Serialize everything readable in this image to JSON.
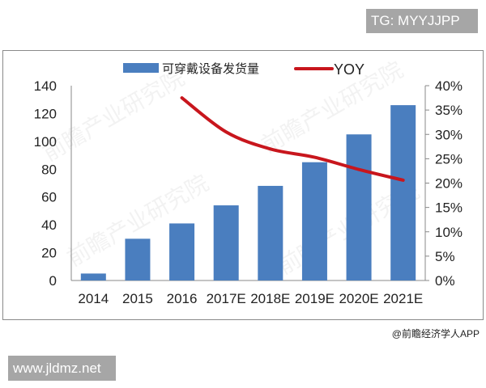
{
  "watermarks": {
    "tg": "TG: MYYJJPP",
    "site": "www.jldmz.net",
    "credit": "@前瞻经济学人APP",
    "logo_text": "前瞻产业研究院"
  },
  "chart_data": {
    "type": "bar+line",
    "categories": [
      "2014",
      "2015",
      "2016",
      "2017E",
      "2018E",
      "2019E",
      "2020E",
      "2021E"
    ],
    "series": [
      {
        "name": "可穿戴设备发货量",
        "type": "bar",
        "axis": "left",
        "color": "#4a7ebf",
        "values": [
          5,
          30,
          41,
          54,
          68,
          85,
          105,
          126
        ]
      },
      {
        "name": "YOY",
        "type": "line",
        "axis": "right",
        "color": "#c8161d",
        "values": [
          null,
          null,
          37.5,
          30.5,
          27,
          25.3,
          22.8,
          20.6
        ]
      }
    ],
    "y_left": {
      "range": [
        0,
        140
      ],
      "ticks": [
        "0",
        "20",
        "40",
        "60",
        "80",
        "100",
        "120",
        "140"
      ]
    },
    "y_right": {
      "range": [
        0,
        40
      ],
      "ticks": [
        "0%",
        "5%",
        "10%",
        "15%",
        "20%",
        "25%",
        "30%",
        "35%",
        "40%"
      ]
    },
    "grid": false,
    "legend": "top"
  }
}
